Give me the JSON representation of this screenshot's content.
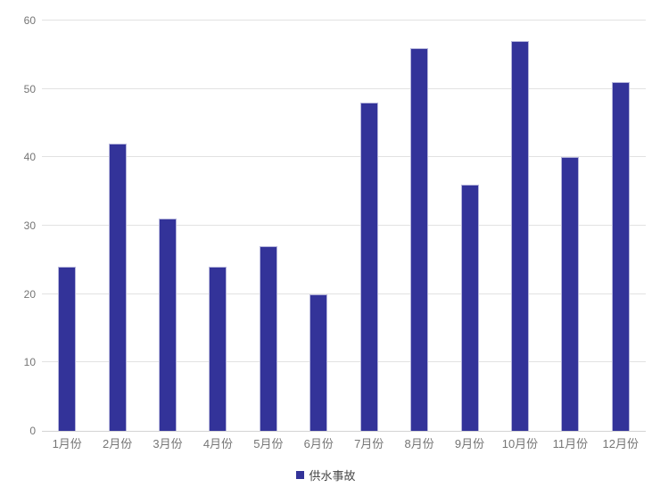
{
  "chart": {
    "background_color": "#ffffff",
    "bar_color": "#333399",
    "bar_border_color": "#b6b6dc",
    "grid_color": "#e2e2e2",
    "axis_line_color": "#d4d4d4",
    "tick_label_color": "#757575",
    "legend_text_color": "#454545"
  },
  "chart_data": {
    "type": "bar",
    "title": "",
    "xlabel": "",
    "ylabel": "",
    "categories": [
      "1月份",
      "2月份",
      "3月份",
      "4月份",
      "5月份",
      "6月份",
      "7月份",
      "8月份",
      "9月份",
      "10月份",
      "11月份",
      "12月份"
    ],
    "series": [
      {
        "name": "供水事故",
        "color": "#333399",
        "values": [
          24,
          42,
          31,
          24,
          27,
          20,
          48,
          56,
          36,
          57,
          40,
          51
        ]
      }
    ],
    "ylim": [
      0,
      60
    ],
    "yticks": [
      0,
      10,
      20,
      30,
      40,
      50,
      60
    ],
    "grid": "horizontal",
    "legend_position": "bottom"
  }
}
